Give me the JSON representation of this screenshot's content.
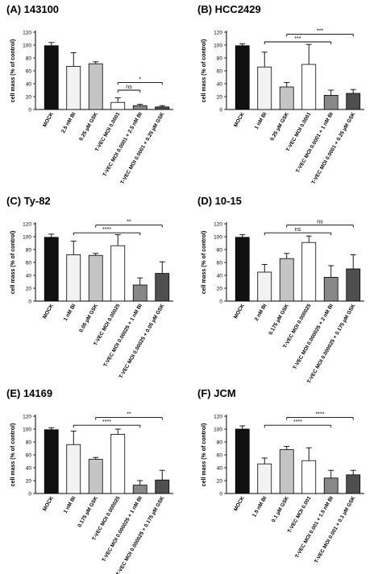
{
  "colors": {
    "mock": "#111111",
    "bi": "#f2f2f2",
    "gsk": "#c4c4c4",
    "tvec": "#ffffff",
    "combo_bi": "#888888",
    "combo_gsk": "#4f4f4f"
  },
  "chart_data": [
    {
      "type": "bar",
      "title": "(A) 143100",
      "ylabel": "cell mass (% of control)",
      "ylim": [
        0,
        120
      ],
      "yticks": [
        0,
        20,
        40,
        60,
        80,
        100,
        120
      ],
      "categories": [
        "MOCK",
        "2.5 nM BI",
        "0.25 µM GSK",
        "T-VEC MOI 0.0001",
        "T-VEC MOI 0.0001 + 2.5 nM BI",
        "T-VEC MOI 0.0001 + 0.25 µM GSK"
      ],
      "values": [
        99,
        67,
        71,
        11,
        6,
        4
      ],
      "errors": [
        5,
        21,
        3,
        7,
        2,
        2
      ],
      "colors": [
        "mock",
        "bi",
        "gsk",
        "tvec",
        "combo_bi",
        "combo_gsk"
      ],
      "significance": [
        {
          "from": 3,
          "to": 4,
          "label": "ns",
          "y": 30
        },
        {
          "from": 3,
          "to": 5,
          "label": "*",
          "y": 42
        }
      ]
    },
    {
      "type": "bar",
      "title": "(B) HCC2429",
      "ylabel": "cell mass (% of control)",
      "ylim": [
        0,
        120
      ],
      "yticks": [
        0,
        20,
        40,
        60,
        80,
        100,
        120
      ],
      "categories": [
        "MOCK",
        "1 nM BI",
        "0.25 µM GSK",
        "T-VEC MOI 0.0001",
        "T-VEC MOI 0.0001 + 1 nM BI",
        "T-VEC MOI 0.0001 + 0.25 µM GSK"
      ],
      "values": [
        99,
        66,
        35,
        70,
        22,
        25
      ],
      "errors": [
        3,
        23,
        7,
        31,
        8,
        6
      ],
      "colors": [
        "mock",
        "bi",
        "gsk",
        "tvec",
        "combo_bi",
        "combo_gsk"
      ],
      "significance": [
        {
          "from": 1,
          "to": 4,
          "label": "***",
          "y": 105
        },
        {
          "from": 2,
          "to": 5,
          "label": "***",
          "y": 117
        }
      ]
    },
    {
      "type": "bar",
      "title": "(C) Ty-82",
      "ylabel": "cell mass (% of control)",
      "ylim": [
        0,
        120
      ],
      "yticks": [
        0,
        20,
        40,
        60,
        80,
        100,
        120
      ],
      "categories": [
        "MOCK",
        "1 nM BI",
        "0.05 µM GSK",
        "T-VEC MOI 0.00025",
        "T-VEC MOI 0.00025 + 1 nM BI",
        "T-VEC MOI 0.00025 + 0.05 µM GSK"
      ],
      "values": [
        99,
        72,
        71,
        86,
        25,
        43
      ],
      "errors": [
        5,
        21,
        3,
        17,
        11,
        18
      ],
      "colors": [
        "mock",
        "bi",
        "gsk",
        "tvec",
        "combo_bi",
        "combo_gsk"
      ],
      "significance": [
        {
          "from": 1,
          "to": 4,
          "label": "****",
          "y": 106
        },
        {
          "from": 2,
          "to": 5,
          "label": "**",
          "y": 118
        }
      ]
    },
    {
      "type": "bar",
      "title": "(D) 10-15",
      "ylabel": "cell mass (% of control)",
      "ylim": [
        0,
        120
      ],
      "yticks": [
        0,
        20,
        40,
        60,
        80,
        100,
        120
      ],
      "categories": [
        "MOCK",
        "2 nM BI",
        "0.175 µM GSK",
        "T-VEC MOI 0.000025",
        "T-VEC MOI 0.000025 + 2 nM BI",
        "T-VEC MOI 0.000025 + 0.175 µM GSK"
      ],
      "values": [
        99,
        45,
        66,
        91,
        37,
        50
      ],
      "errors": [
        4,
        12,
        8,
        10,
        18,
        22
      ],
      "colors": [
        "mock",
        "bi",
        "gsk",
        "tvec",
        "combo_bi",
        "combo_gsk"
      ],
      "significance": [
        {
          "from": 1,
          "to": 4,
          "label": "ns",
          "y": 106
        },
        {
          "from": 2,
          "to": 5,
          "label": "ns",
          "y": 118
        }
      ]
    },
    {
      "type": "bar",
      "title": "(E) 14169",
      "ylabel": "cell mass (% of control)",
      "ylim": [
        0,
        120
      ],
      "yticks": [
        0,
        20,
        40,
        60,
        80,
        100,
        120
      ],
      "categories": [
        "MOCK",
        "1 nM BI",
        "0.175 µM GSK",
        "T-VEC MOI 0.000025",
        "T-VEC MOI 0.000025 + 1 nM BI",
        "T-VEC MOI 0.000025 + 0.175 µM GSK"
      ],
      "values": [
        99,
        76,
        53,
        92,
        13,
        21
      ],
      "errors": [
        3,
        21,
        3,
        8,
        7,
        15
      ],
      "colors": [
        "mock",
        "bi",
        "gsk",
        "tvec",
        "combo_bi",
        "combo_gsk"
      ],
      "significance": [
        {
          "from": 1,
          "to": 4,
          "label": "****",
          "y": 106
        },
        {
          "from": 2,
          "to": 5,
          "label": "**",
          "y": 118
        }
      ]
    },
    {
      "type": "bar",
      "title": "(F) JCM",
      "ylabel": "cell mass (% of control)",
      "ylim": [
        0,
        120
      ],
      "yticks": [
        0,
        20,
        40,
        60,
        80,
        100,
        120
      ],
      "categories": [
        "MOCK",
        "1.5 nM BI",
        "0.1 µM GSK",
        "T-VEC MOI 0.001",
        "T-VEC MOI 0.001 + 1.5 nM BI",
        "T-VEC MOI 0.001 + 0.1 µM GSK"
      ],
      "values": [
        100,
        46,
        68,
        51,
        24,
        29
      ],
      "errors": [
        5,
        9,
        5,
        20,
        12,
        7
      ],
      "colors": [
        "mock",
        "bi",
        "gsk",
        "tvec",
        "combo_bi",
        "combo_gsk"
      ],
      "significance": [
        {
          "from": 1,
          "to": 4,
          "label": "****",
          "y": 106
        },
        {
          "from": 2,
          "to": 5,
          "label": "****",
          "y": 118
        }
      ]
    }
  ]
}
